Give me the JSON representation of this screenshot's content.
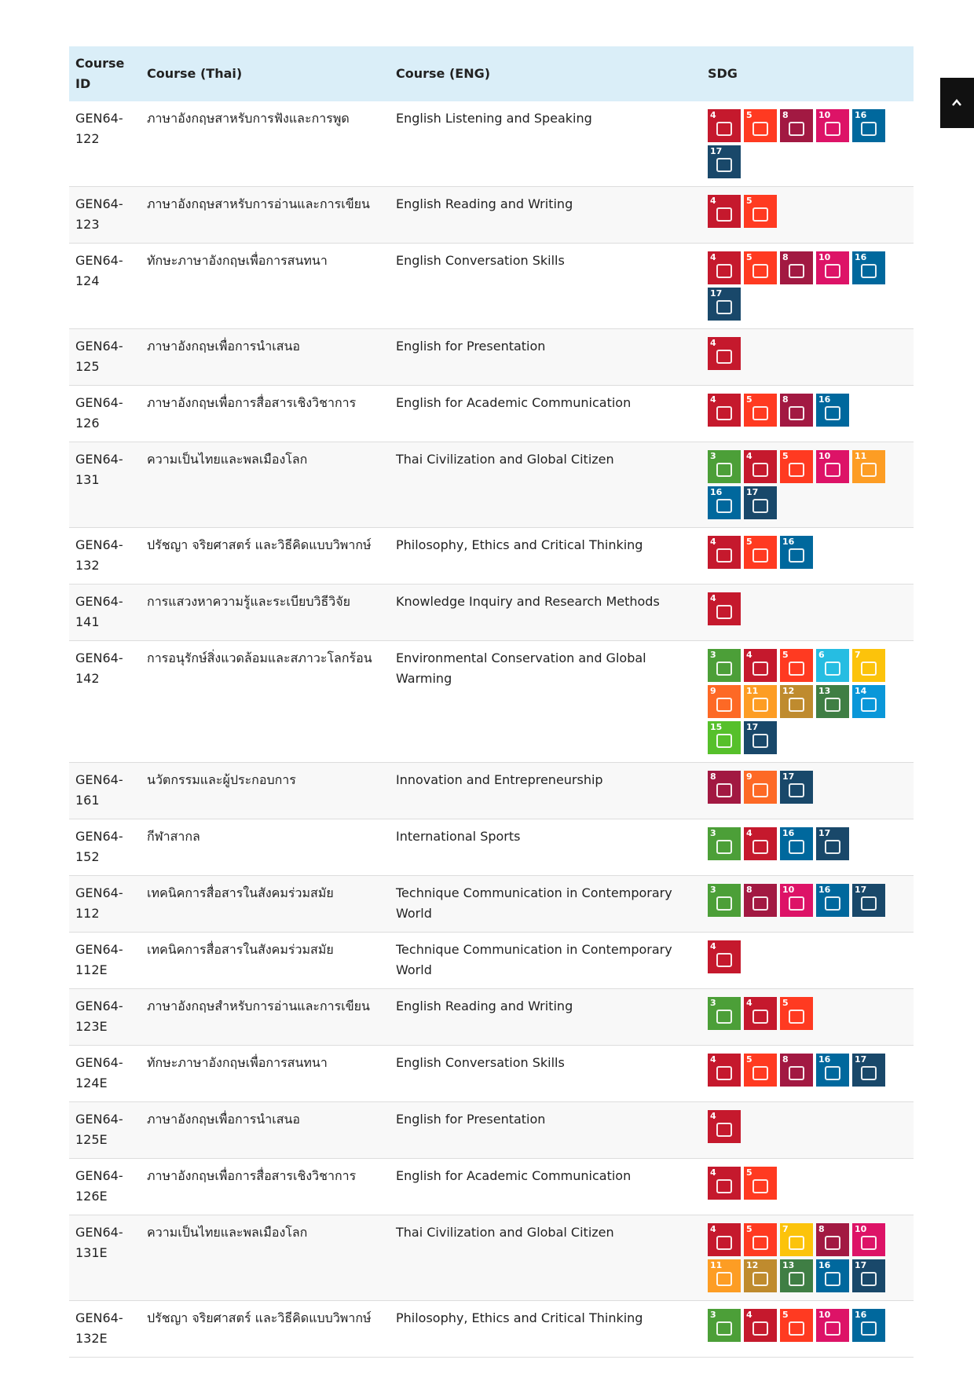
{
  "table": {
    "header": [
      "Course ID",
      "Course (Thai)",
      "Course (ENG)",
      "SDG"
    ],
    "rows": [
      {
        "id": "GEN64-122",
        "thai": "ภาษาอังกฤษสาหรับการฟังและการพูด",
        "eng": "English Listening and Speaking",
        "sdg": [
          4,
          5,
          8,
          10,
          16,
          17
        ]
      },
      {
        "id": "GEN64-123",
        "thai": "ภาษาอังกฤษสาหรับการอ่านและการเขียน",
        "eng": "English Reading and Writing",
        "sdg": [
          4,
          5
        ]
      },
      {
        "id": "GEN64-124",
        "thai": "ทักษะภาษาอังกฤษเพื่อการสนทนา",
        "eng": "English Conversation Skills",
        "sdg": [
          4,
          5,
          8,
          10,
          16,
          17
        ]
      },
      {
        "id": "GEN64-125",
        "thai": "ภาษาอังกฤษเพื่อการนำเสนอ",
        "eng": "English for Presentation",
        "sdg": [
          4
        ]
      },
      {
        "id": "GEN64-126",
        "thai": "ภาษาอังกฤษเพื่อการสื่อสารเชิงวิชาการ",
        "eng": "English for Academic Communication",
        "sdg": [
          4,
          5,
          8,
          16
        ]
      },
      {
        "id": "GEN64-131",
        "thai": "ความเป็นไทยและพลเมืองโลก",
        "eng": "Thai Civilization and Global Citizen",
        "sdg": [
          3,
          4,
          5,
          10,
          11,
          16,
          17
        ]
      },
      {
        "id": "GEN64-132",
        "thai": "ปรัชญา จริยศาสตร์ และวิธีคิดแบบวิพากษ์",
        "eng": "Philosophy, Ethics and Critical Thinking",
        "sdg": [
          4,
          5,
          16
        ]
      },
      {
        "id": "GEN64-141",
        "thai": "การแสวงหาความรู้และระเบียบวิธีวิจัย",
        "eng": "Knowledge Inquiry and Research Methods",
        "sdg": [
          4
        ]
      },
      {
        "id": "GEN64-142",
        "thai": "การอนุรักษ์สิ่งแวดล้อมและสภาวะโลกร้อน",
        "eng": "Environmental Conservation and Global Warming",
        "sdg": [
          3,
          4,
          5,
          6,
          7,
          9,
          11,
          12,
          13,
          14,
          15,
          17
        ]
      },
      {
        "id": "GEN64-161",
        "thai": "นวัตกรรมและผู้ประกอบการ",
        "eng": "Innovation and Entrepreneurship",
        "sdg": [
          8,
          9,
          17
        ]
      },
      {
        "id": "GEN64-152",
        "thai": "กีฬาสากล",
        "eng": "International Sports",
        "sdg": [
          3,
          4,
          16,
          17
        ]
      },
      {
        "id": "GEN64-112",
        "thai": "เทคนิคการสื่อสารในสังคมร่วมสมัย",
        "eng": "Technique Communication in Contemporary World",
        "sdg": [
          3,
          8,
          10,
          16,
          17
        ]
      },
      {
        "id": "GEN64-112E",
        "thai": "เทคนิคการสื่อสารในสังคมร่วมสมัย",
        "eng": "Technique Communication in Contemporary World",
        "sdg": [
          4
        ]
      },
      {
        "id": "GEN64-123E",
        "thai": "ภาษาอังกฤษสำหรับการอ่านและการเขียน",
        "eng": "English Reading and Writing",
        "sdg": [
          3,
          4,
          5
        ]
      },
      {
        "id": "GEN64-124E",
        "thai": "ทักษะภาษาอังกฤษเพื่อการสนทนา",
        "eng": "English Conversation Skills",
        "sdg": [
          4,
          5,
          8,
          16,
          17
        ]
      },
      {
        "id": "GEN64-125E",
        "thai": "ภาษาอังกฤษเพื่อการนำเสนอ",
        "eng": "English for Presentation",
        "sdg": [
          4
        ]
      },
      {
        "id": "GEN64-126E",
        "thai": "ภาษาอังกฤษเพื่อการสื่อสารเชิงวิชาการ",
        "eng": "English for Academic Communication",
        "sdg": [
          4,
          5
        ]
      },
      {
        "id": "GEN64-131E",
        "thai": "ความเป็นไทยและพลเมืองโลก",
        "eng": "Thai Civilization and Global Citizen",
        "sdg": [
          4,
          5,
          7,
          8,
          10,
          11,
          12,
          13,
          16,
          17
        ]
      },
      {
        "id": "GEN64-132E",
        "thai": "ปรัชญา จริยศาสตร์ และวิธีคิดแบบวิพากษ์",
        "eng": "Philosophy, Ethics and Critical Thinking",
        "sdg": [
          3,
          4,
          5,
          10,
          16
        ]
      }
    ]
  }
}
